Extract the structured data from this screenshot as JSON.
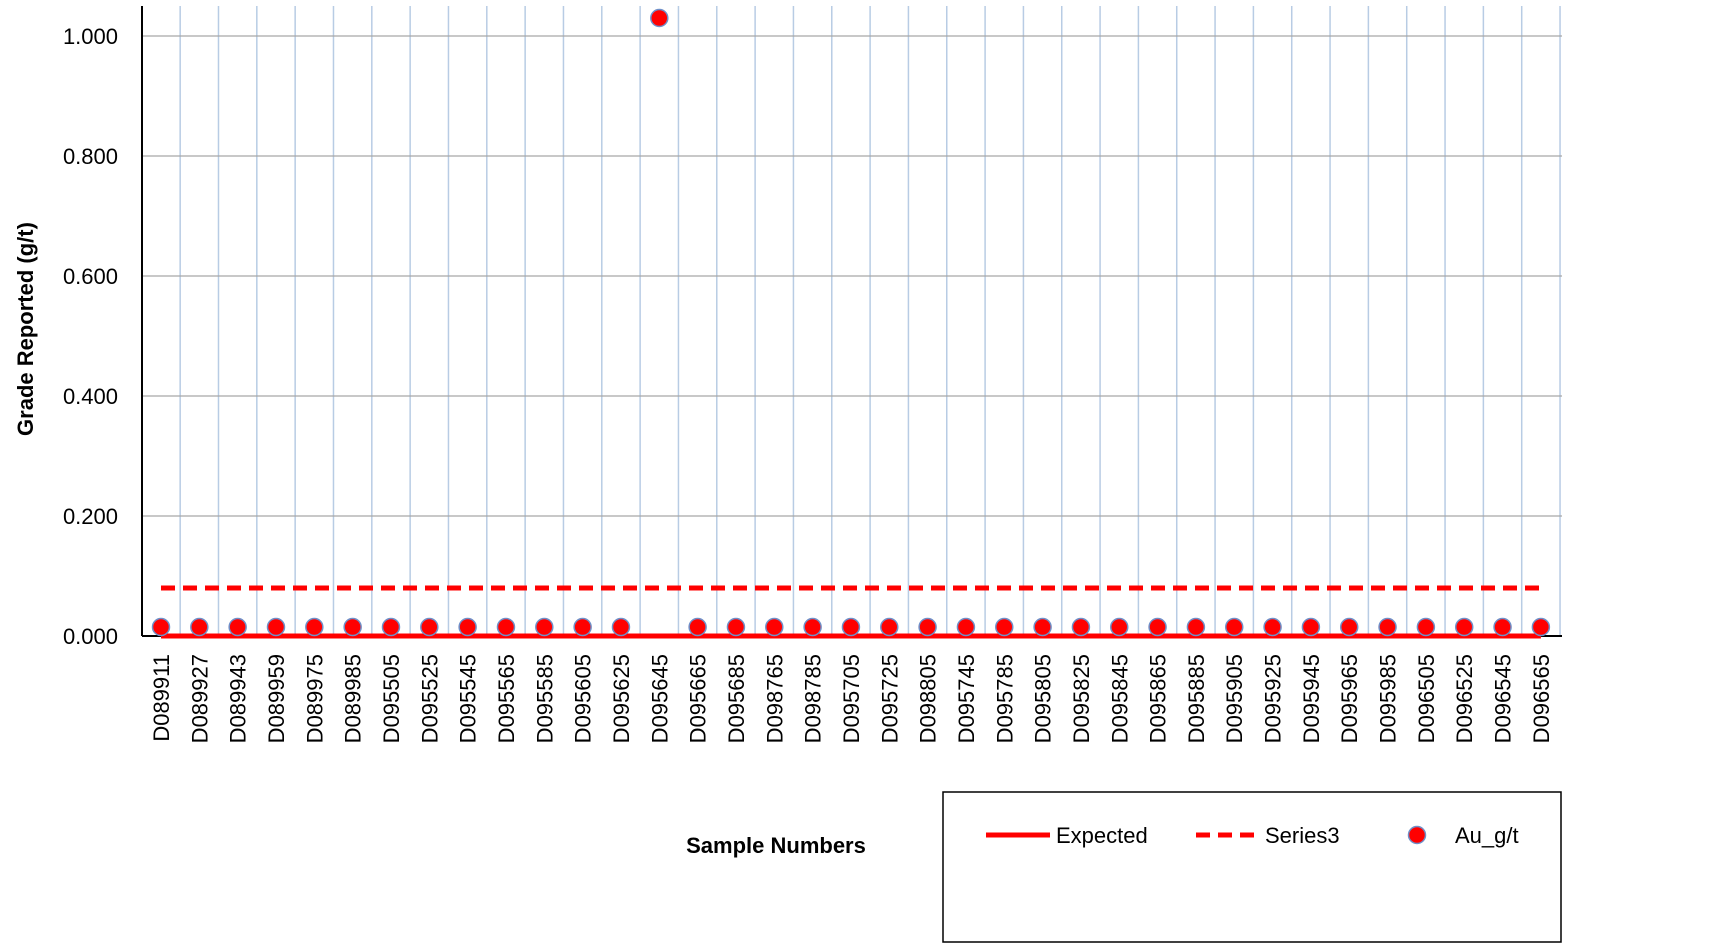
{
  "chart_data": {
    "type": "line",
    "title": "",
    "xlabel": "Sample Numbers",
    "ylabel": "Grade Reported (g/t)",
    "ylim": [
      0,
      1.0
    ],
    "yticks": [
      "0.000",
      "0.200",
      "0.400",
      "0.600",
      "0.800",
      "1.000"
    ],
    "grid": true,
    "legend_position": "bottom-right",
    "categories": [
      "D089911",
      "D089927",
      "D089943",
      "D089959",
      "D089975",
      "D089985",
      "D095505",
      "D095525",
      "D095545",
      "D095565",
      "D095585",
      "D095605",
      "D095625",
      "D095645",
      "D095665",
      "D095685",
      "D098765",
      "D098785",
      "D095705",
      "D095725",
      "D098805",
      "D095745",
      "D095785",
      "D095805",
      "D095825",
      "D095845",
      "D095865",
      "D095885",
      "D095905",
      "D095925",
      "D095945",
      "D095965",
      "D095985",
      "D096505",
      "D096525",
      "D096545",
      "D096565"
    ],
    "series": [
      {
        "name": "Expected",
        "style": "solid-line",
        "color": "#ff0000",
        "values": [
          0,
          0,
          0,
          0,
          0,
          0,
          0,
          0,
          0,
          0,
          0,
          0,
          0,
          0,
          0,
          0,
          0,
          0,
          0,
          0,
          0,
          0,
          0,
          0,
          0,
          0,
          0,
          0,
          0,
          0,
          0,
          0,
          0,
          0,
          0,
          0,
          0
        ]
      },
      {
        "name": "Series3",
        "style": "dashed-line",
        "color": "#ff0000",
        "values": [
          0.08,
          0.08,
          0.08,
          0.08,
          0.08,
          0.08,
          0.08,
          0.08,
          0.08,
          0.08,
          0.08,
          0.08,
          0.08,
          0.08,
          0.08,
          0.08,
          0.08,
          0.08,
          0.08,
          0.08,
          0.08,
          0.08,
          0.08,
          0.08,
          0.08,
          0.08,
          0.08,
          0.08,
          0.08,
          0.08,
          0.08,
          0.08,
          0.08,
          0.08,
          0.08,
          0.08,
          0.08
        ]
      },
      {
        "name": "Au_g/t",
        "style": "markers",
        "color": "#ff0000",
        "marker_edge": "#6f8fc8",
        "values": [
          0.015,
          0.015,
          0.015,
          0.015,
          0.015,
          0.015,
          0.015,
          0.015,
          0.015,
          0.015,
          0.015,
          0.015,
          0.015,
          1.03,
          0.015,
          0.015,
          0.015,
          0.015,
          0.015,
          0.015,
          0.015,
          0.015,
          0.015,
          0.015,
          0.015,
          0.015,
          0.015,
          0.015,
          0.015,
          0.015,
          0.015,
          0.015,
          0.015,
          0.015,
          0.015,
          0.015,
          0.015
        ]
      }
    ]
  }
}
